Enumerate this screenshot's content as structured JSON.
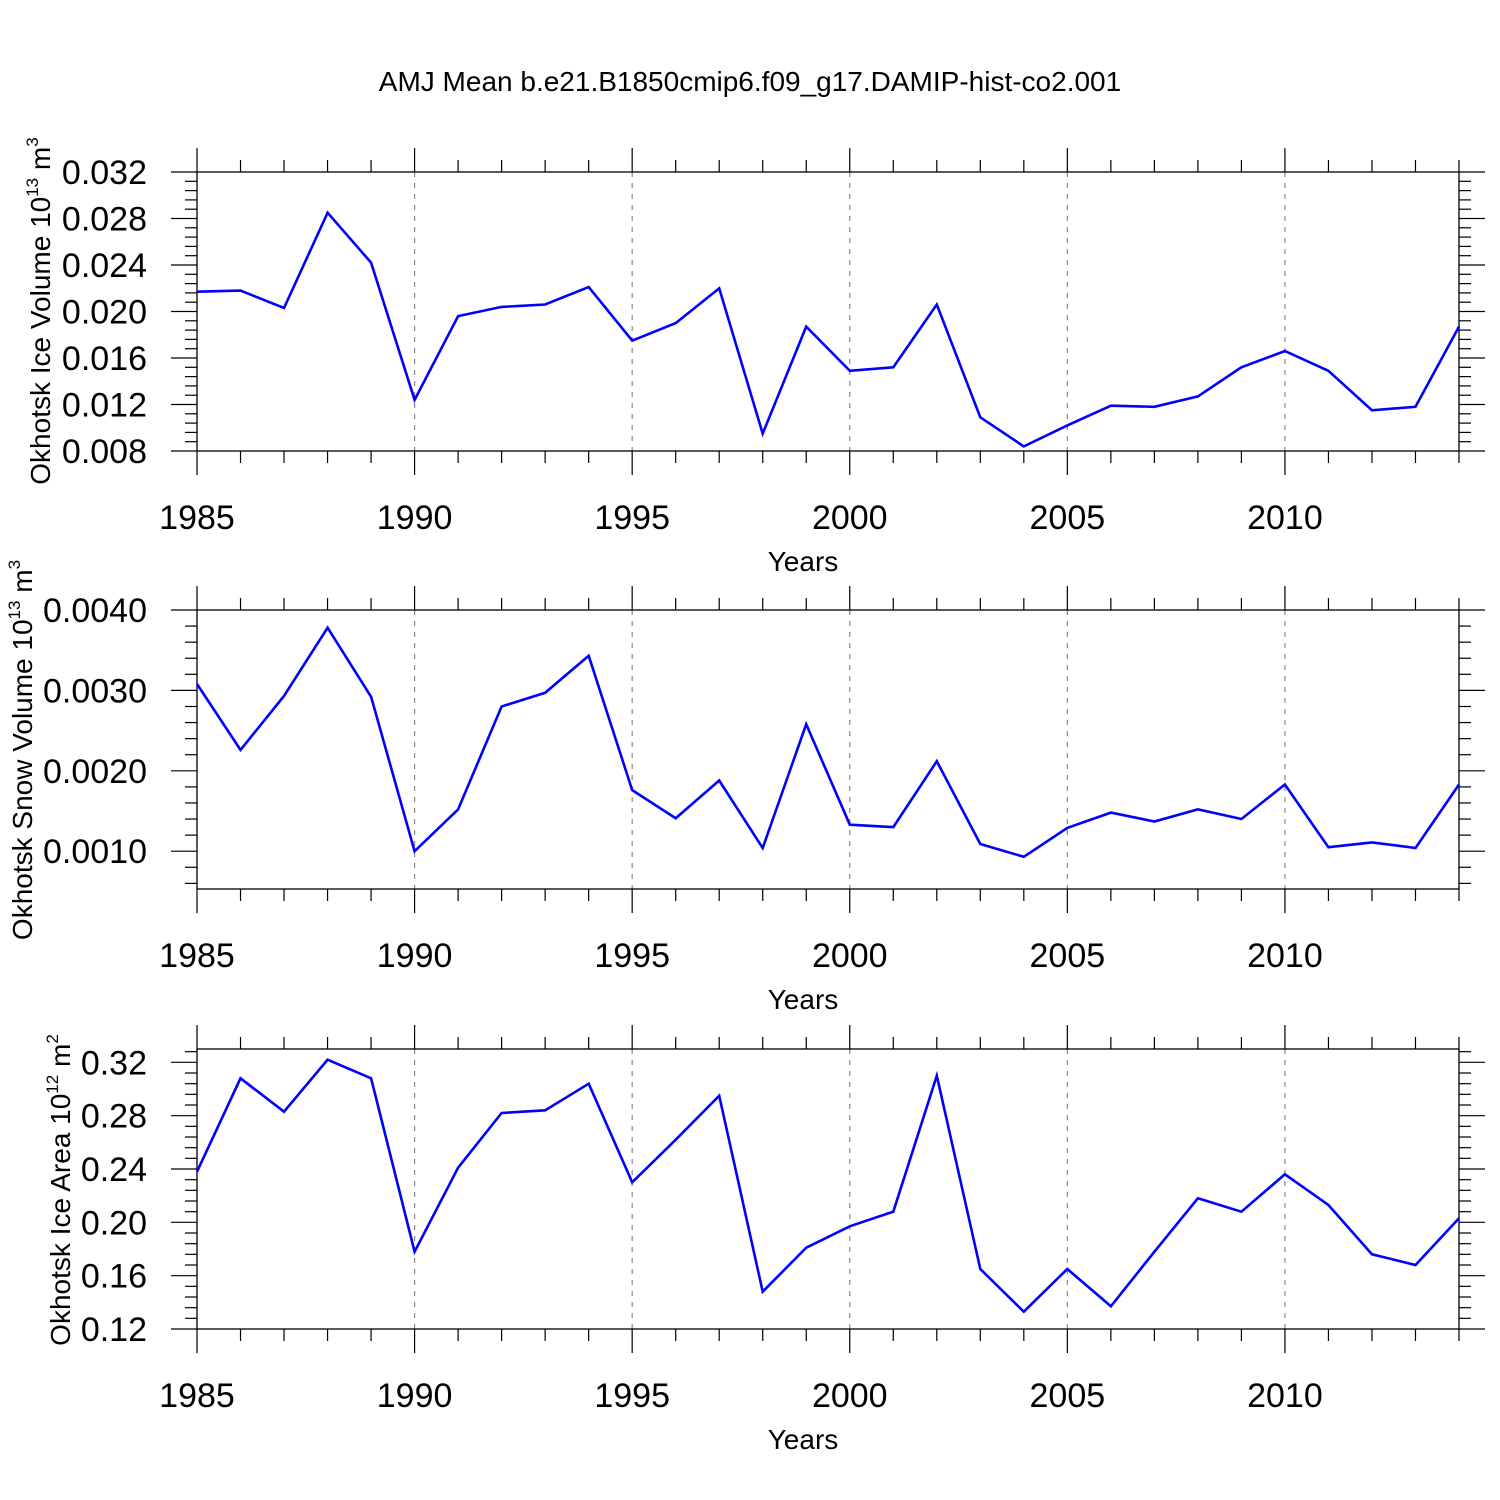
{
  "figure": {
    "title": "AMJ Mean b.e21.B1850cmip6.f09_g17.DAMIP-hist-co2.001"
  },
  "colors": {
    "line": "#0000ff",
    "axis": "#000000",
    "grid": "#888888"
  },
  "chart_data": [
    {
      "id": "ice-volume",
      "type": "line",
      "title": "",
      "xlabel": "Years",
      "ylabel_main": "Okhotsk Ice Volume 10",
      "ylabel_exp": "13",
      "ylabel_unit": "m",
      "ylabel_unit_exp": "3",
      "xlim": [
        1985,
        2014
      ],
      "ylim": [
        0.008,
        0.032
      ],
      "xticks": [
        1985,
        1990,
        1995,
        2000,
        2005,
        2010
      ],
      "xtick_labels": [
        "1985",
        "1990",
        "1995",
        "2000",
        "2005",
        "2010"
      ],
      "yticks": [
        0.008,
        0.012,
        0.016,
        0.02,
        0.024,
        0.028,
        0.032
      ],
      "ytick_labels": [
        "0.008",
        "0.012",
        "0.016",
        "0.020",
        "0.024",
        "0.028",
        "0.032"
      ],
      "grid": "vertical dashed at major x ticks",
      "x": [
        1985,
        1986,
        1987,
        1988,
        1989,
        1990,
        1991,
        1992,
        1993,
        1994,
        1995,
        1996,
        1997,
        1998,
        1999,
        2000,
        2001,
        2002,
        2003,
        2004,
        2005,
        2006,
        2007,
        2008,
        2009,
        2010,
        2011,
        2012,
        2013,
        2014
      ],
      "series": [
        {
          "name": "ice volume",
          "values": [
            0.0217,
            0.0218,
            0.0203,
            0.0285,
            0.0242,
            0.0124,
            0.0196,
            0.0204,
            0.0206,
            0.0221,
            0.0175,
            0.019,
            0.022,
            0.0095,
            0.0187,
            0.0149,
            0.0152,
            0.0206,
            0.0109,
            0.0084,
            0.0102,
            0.0119,
            0.0118,
            0.0127,
            0.0152,
            0.0166,
            0.0149,
            0.0115,
            0.0118,
            0.0187
          ]
        }
      ]
    },
    {
      "id": "snow-volume",
      "type": "line",
      "title": "",
      "xlabel": "Years",
      "ylabel_main": "Okhotsk Snow Volume 10",
      "ylabel_exp": "13",
      "ylabel_unit": "m",
      "ylabel_unit_exp": "3",
      "xlim": [
        1985,
        2014
      ],
      "ylim": [
        0.00053,
        0.004
      ],
      "xticks": [
        1985,
        1990,
        1995,
        2000,
        2005,
        2010
      ],
      "xtick_labels": [
        "1985",
        "1990",
        "1995",
        "2000",
        "2005",
        "2010"
      ],
      "yticks": [
        0.001,
        0.002,
        0.003,
        0.004
      ],
      "ytick_labels": [
        "0.0010",
        "0.0020",
        "0.0030",
        "0.0040"
      ],
      "grid": "vertical dashed at major x ticks",
      "x": [
        1985,
        1986,
        1987,
        1988,
        1989,
        1990,
        1991,
        1992,
        1993,
        1994,
        1995,
        1996,
        1997,
        1998,
        1999,
        2000,
        2001,
        2002,
        2003,
        2004,
        2005,
        2006,
        2007,
        2008,
        2009,
        2010,
        2011,
        2012,
        2013,
        2014
      ],
      "series": [
        {
          "name": "snow volume",
          "values": [
            0.00308,
            0.00226,
            0.00293,
            0.00378,
            0.00292,
            0.001,
            0.00152,
            0.0028,
            0.00297,
            0.00343,
            0.00176,
            0.00141,
            0.00188,
            0.00104,
            0.00258,
            0.00133,
            0.0013,
            0.00212,
            0.00109,
            0.00093,
            0.00129,
            0.00148,
            0.00137,
            0.00152,
            0.0014,
            0.00183,
            0.00105,
            0.00111,
            0.00104,
            0.00183
          ]
        }
      ]
    },
    {
      "id": "ice-area",
      "type": "line",
      "title": "",
      "xlabel": "Years",
      "ylabel_main": "Okhotsk Ice Area 10",
      "ylabel_exp": "12",
      "ylabel_unit": "m",
      "ylabel_unit_exp": "2",
      "xlim": [
        1985,
        2014
      ],
      "ylim": [
        0.12,
        0.33
      ],
      "xticks": [
        1985,
        1990,
        1995,
        2000,
        2005,
        2010
      ],
      "xtick_labels": [
        "1985",
        "1990",
        "1995",
        "2000",
        "2005",
        "2010"
      ],
      "yticks": [
        0.12,
        0.16,
        0.2,
        0.24,
        0.28,
        0.32
      ],
      "ytick_labels": [
        "0.12",
        "0.16",
        "0.20",
        "0.24",
        "0.28",
        "0.32"
      ],
      "grid": "vertical dashed at major x ticks",
      "x": [
        1985,
        1986,
        1987,
        1988,
        1989,
        1990,
        1991,
        1992,
        1993,
        1994,
        1995,
        1996,
        1997,
        1998,
        1999,
        2000,
        2001,
        2002,
        2003,
        2004,
        2005,
        2006,
        2007,
        2008,
        2009,
        2010,
        2011,
        2012,
        2013,
        2014
      ],
      "series": [
        {
          "name": "ice area",
          "values": [
            0.238,
            0.308,
            0.283,
            0.322,
            0.308,
            0.178,
            0.241,
            0.282,
            0.284,
            0.304,
            0.23,
            0.262,
            0.295,
            0.148,
            0.181,
            0.197,
            0.208,
            0.31,
            0.165,
            0.133,
            0.165,
            0.137,
            0.178,
            0.218,
            0.208,
            0.236,
            0.213,
            0.176,
            0.168,
            0.203
          ]
        }
      ]
    }
  ]
}
